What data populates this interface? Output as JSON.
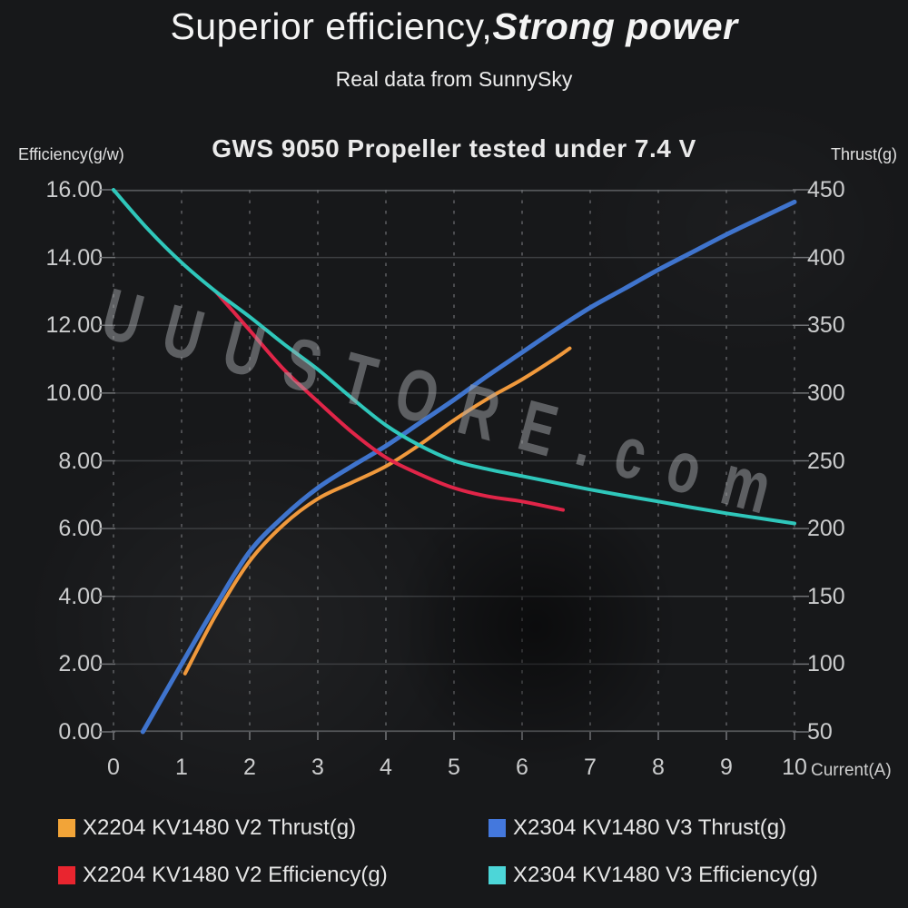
{
  "header": {
    "title_regular": "Superior efficiency,",
    "title_bold": "Strong power",
    "subtitle": "Real data from SunnySky"
  },
  "watermark": "UUUSTORE.com",
  "colors": {
    "background": "#17181a",
    "grid_solid": "#3c3e41",
    "grid_dashed": "#6f7174",
    "axis_line": "#55575a",
    "tick_text": "#cbcccd",
    "title_text": "#f4f4f4"
  },
  "chart_data": {
    "type": "line",
    "title": "GWS 9050 Propeller tested under 7.4 V",
    "grid": "horizontal solid, vertical dashed",
    "left_axis": {
      "label": "Efficiency(g/w)",
      "min": 0,
      "max": 16,
      "tick_labels": [
        "16.00",
        "14.00",
        "12.00",
        "10.00",
        "8.00",
        "6.00",
        "4.00",
        "2.00",
        "0.00"
      ]
    },
    "right_axis": {
      "label": "Thrust(g)",
      "min": 50,
      "max": 450,
      "tick_labels": [
        "450",
        "400",
        "350",
        "300",
        "250",
        "200",
        "150",
        "100",
        "50"
      ]
    },
    "x_axis": {
      "label": "Current(A)",
      "min": 0,
      "max": 10,
      "tick_labels": [
        "0",
        "1",
        "2",
        "3",
        "4",
        "5",
        "6",
        "7",
        "8",
        "9",
        "10"
      ]
    },
    "series": [
      {
        "name": "X2204 KV1480 V2 Thrust(g)",
        "axis": "right",
        "color": "#f0993c",
        "stroke_width": 4,
        "points": [
          [
            1.05,
            93
          ],
          [
            1.5,
            136
          ],
          [
            2,
            176
          ],
          [
            2.5,
            203
          ],
          [
            3,
            222
          ],
          [
            3.5,
            234
          ],
          [
            4,
            246
          ],
          [
            4.5,
            262
          ],
          [
            5,
            280
          ],
          [
            5.5,
            296
          ],
          [
            6,
            310
          ],
          [
            6.5,
            326
          ],
          [
            6.7,
            333
          ]
        ]
      },
      {
        "name": "X2304 KV1480 V3 Thrust(g)",
        "axis": "right",
        "color": "#3f74cd",
        "stroke_width": 5,
        "points": [
          [
            0.43,
            50
          ],
          [
            1,
            100
          ],
          [
            1.5,
            143
          ],
          [
            2,
            183
          ],
          [
            2.5,
            209
          ],
          [
            3,
            230
          ],
          [
            3.5,
            246
          ],
          [
            4,
            261
          ],
          [
            4.5,
            278
          ],
          [
            5,
            295
          ],
          [
            5.5,
            313
          ],
          [
            6,
            330
          ],
          [
            6.5,
            347
          ],
          [
            7,
            363
          ],
          [
            7.5,
            377
          ],
          [
            8,
            391
          ],
          [
            8.5,
            404
          ],
          [
            9,
            417
          ],
          [
            9.5,
            429
          ],
          [
            10,
            441
          ]
        ]
      },
      {
        "name": "X2204 KV1480 V2 Efficiency(g)",
        "axis": "left",
        "color": "#e02548",
        "stroke_width": 4,
        "points": [
          [
            1.5,
            13.0
          ],
          [
            2,
            11.85
          ],
          [
            2.5,
            10.7
          ],
          [
            3,
            9.75
          ],
          [
            3.5,
            8.85
          ],
          [
            4,
            8.1
          ],
          [
            4.5,
            7.6
          ],
          [
            5,
            7.2
          ],
          [
            5.5,
            6.95
          ],
          [
            6,
            6.8
          ],
          [
            6.6,
            6.55
          ]
        ]
      },
      {
        "name": "X2304 KV1480 V3 Efficiency(g)",
        "axis": "left",
        "color": "#2fc7bb",
        "stroke_width": 4,
        "points": [
          [
            0,
            16.0
          ],
          [
            0.5,
            14.85
          ],
          [
            1,
            13.85
          ],
          [
            1.5,
            13.0
          ],
          [
            2,
            12.25
          ],
          [
            2.5,
            11.45
          ],
          [
            3,
            10.7
          ],
          [
            3.5,
            9.85
          ],
          [
            4,
            9.05
          ],
          [
            4.5,
            8.45
          ],
          [
            5,
            8.0
          ],
          [
            5.5,
            7.75
          ],
          [
            6,
            7.55
          ],
          [
            6.5,
            7.35
          ],
          [
            7,
            7.15
          ],
          [
            7.5,
            6.97
          ],
          [
            8,
            6.8
          ],
          [
            8.5,
            6.62
          ],
          [
            9,
            6.45
          ],
          [
            9.5,
            6.3
          ],
          [
            10,
            6.15
          ]
        ]
      }
    ],
    "legend": [
      {
        "label": "X2204 KV1480 V2 Thrust(g)",
        "swatch": "#f2a438"
      },
      {
        "label": "X2304 KV1480 V3 Thrust(g)",
        "swatch": "#4478dd"
      },
      {
        "label": "X2204 KV1480 V2 Efficiency(g)",
        "swatch": "#e9252f"
      },
      {
        "label": "X2304 KV1480 V3 Efficiency(g)",
        "swatch": "#4cd6d8"
      }
    ],
    "legend_position": "bottom, two columns"
  }
}
